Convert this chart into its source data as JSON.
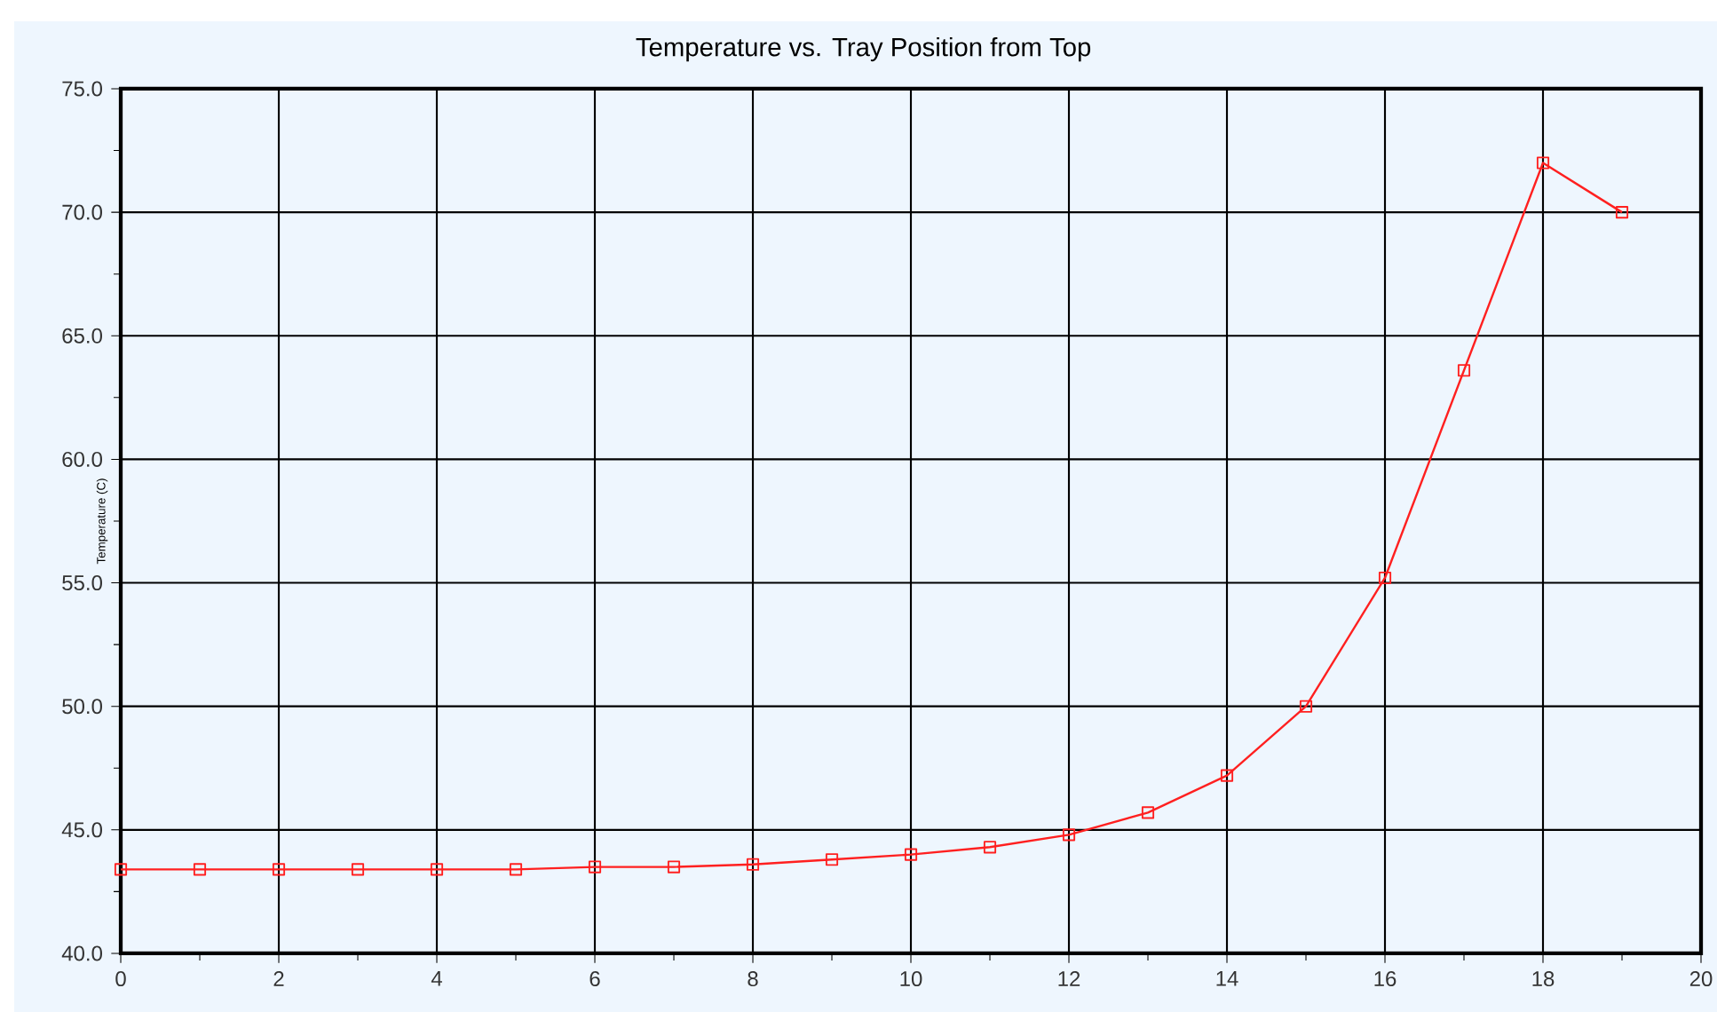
{
  "chart_data": {
    "type": "line",
    "title": "Temperature vs. Tray Position from Top",
    "ylabel": "Temperature (C)",
    "x": [
      0,
      1,
      2,
      3,
      4,
      5,
      6,
      7,
      8,
      9,
      10,
      11,
      12,
      13,
      14,
      15,
      16,
      17,
      18,
      19
    ],
    "series": [
      {
        "color": "#ff2020",
        "values": [
          43.4,
          43.4,
          43.4,
          43.4,
          43.4,
          43.4,
          43.5,
          43.5,
          43.6,
          43.8,
          44.0,
          44.3,
          44.8,
          45.7,
          47.2,
          50.0,
          55.2,
          63.6,
          72.0,
          70.0
        ]
      }
    ],
    "xlim": [
      0,
      20
    ],
    "xticks": [
      0,
      2,
      4,
      6,
      8,
      10,
      12,
      14,
      16,
      18,
      20
    ],
    "ylim": [
      40,
      75
    ],
    "yticks": [
      {
        "value": 40,
        "label": "40.0"
      },
      {
        "value": 45,
        "label": "45.0"
      },
      {
        "value": 50,
        "label": "50.0"
      },
      {
        "value": 55,
        "label": "55.0"
      },
      {
        "value": 60,
        "label": "60.0"
      },
      {
        "value": 65,
        "label": "65.0"
      },
      {
        "value": 70,
        "label": "70.0"
      },
      {
        "value": 75,
        "label": "75.0"
      }
    ],
    "grid": true,
    "marker": "square",
    "line_style": "solid"
  }
}
